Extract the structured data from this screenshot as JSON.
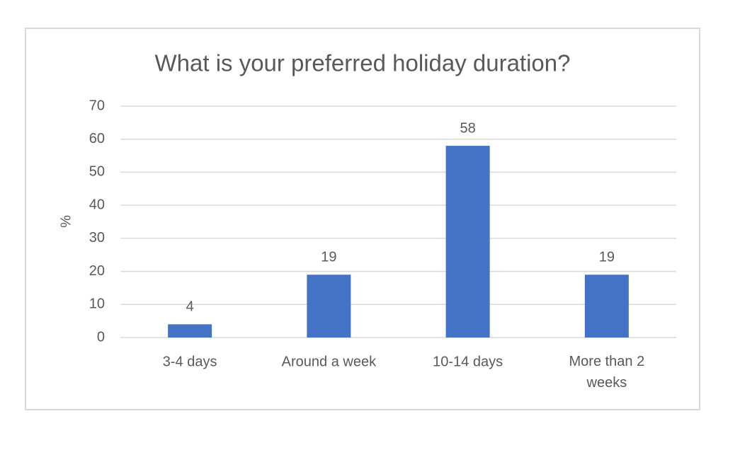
{
  "chart_data": {
    "type": "bar",
    "title": "What is your preferred holiday duration?",
    "y_label": "%",
    "categories": [
      "3-4 days",
      "Around a week",
      "10-14 days",
      "More than 2 weeks"
    ],
    "values": [
      4,
      19,
      58,
      19
    ],
    "color": "#4472c4",
    "ylim": [
      0,
      70
    ],
    "yticks": [
      0,
      10,
      20,
      30,
      40,
      50,
      60,
      70
    ],
    "grid": true
  }
}
